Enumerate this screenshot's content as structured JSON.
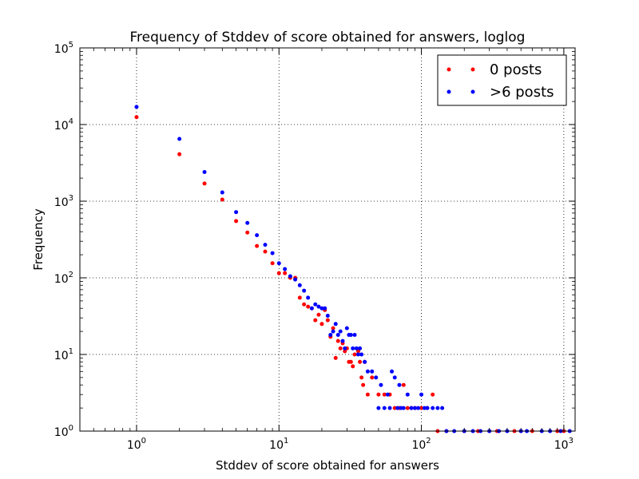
{
  "chart_data": {
    "type": "scatter",
    "title": "Frequency of Stddev of score obtained for answers, loglog",
    "xlabel": "Stddev of score obtained for answers",
    "ylabel": "Frequency",
    "xscale": "log",
    "yscale": "log",
    "xlim": [
      0.4,
      1200
    ],
    "ylim": [
      1,
      100000
    ],
    "grid": true,
    "legend_position": "top-right",
    "x_ticks": [
      {
        "base": "10",
        "exp": "0",
        "value": 1
      },
      {
        "base": "10",
        "exp": "1",
        "value": 10
      },
      {
        "base": "10",
        "exp": "2",
        "value": 100
      },
      {
        "base": "10",
        "exp": "3",
        "value": 1000
      }
    ],
    "y_ticks": [
      {
        "base": "10",
        "exp": "0",
        "value": 1
      },
      {
        "base": "10",
        "exp": "1",
        "value": 10
      },
      {
        "base": "10",
        "exp": "2",
        "value": 100
      },
      {
        "base": "10",
        "exp": "3",
        "value": 1000
      },
      {
        "base": "10",
        "exp": "4",
        "value": 10000
      },
      {
        "base": "10",
        "exp": "5",
        "value": 100000
      }
    ],
    "series": [
      {
        "name": "0 posts",
        "color": "#ff0000",
        "points": [
          [
            1,
            12500
          ],
          [
            2,
            4100
          ],
          [
            3,
            1700
          ],
          [
            4,
            1050
          ],
          [
            5,
            550
          ],
          [
            6,
            390
          ],
          [
            7,
            260
          ],
          [
            8,
            220
          ],
          [
            9,
            155
          ],
          [
            10,
            115
          ],
          [
            11,
            115
          ],
          [
            12,
            100
          ],
          [
            13,
            100
          ],
          [
            14,
            55
          ],
          [
            15,
            45
          ],
          [
            16,
            42
          ],
          [
            17,
            40
          ],
          [
            18,
            28
          ],
          [
            19,
            33
          ],
          [
            20,
            25
          ],
          [
            21,
            38
          ],
          [
            22,
            28
          ],
          [
            23,
            17
          ],
          [
            24,
            22
          ],
          [
            25,
            9
          ],
          [
            26,
            15
          ],
          [
            27,
            12
          ],
          [
            28,
            14
          ],
          [
            29,
            11
          ],
          [
            30,
            12
          ],
          [
            31,
            8
          ],
          [
            32,
            8
          ],
          [
            33,
            7
          ],
          [
            34,
            10
          ],
          [
            36,
            11
          ],
          [
            37,
            8
          ],
          [
            38,
            5
          ],
          [
            39,
            4
          ],
          [
            40,
            8
          ],
          [
            42,
            3
          ],
          [
            45,
            5
          ],
          [
            50,
            3
          ],
          [
            55,
            3
          ],
          [
            60,
            3
          ],
          [
            65,
            2
          ],
          [
            70,
            2
          ],
          [
            75,
            4
          ],
          [
            80,
            2
          ],
          [
            85,
            2
          ],
          [
            90,
            2
          ],
          [
            100,
            2
          ],
          [
            110,
            2
          ],
          [
            120,
            3
          ],
          [
            130,
            1
          ],
          [
            150,
            1
          ],
          [
            200,
            1
          ],
          [
            250,
            1
          ],
          [
            300,
            1
          ],
          [
            340,
            1
          ],
          [
            450,
            1
          ],
          [
            500,
            1
          ],
          [
            600,
            1
          ],
          [
            900,
            1
          ],
          [
            1000,
            1
          ]
        ]
      },
      {
        "name": ">6 posts",
        "color": "#0000ff",
        "points": [
          [
            1,
            17000
          ],
          [
            2,
            6500
          ],
          [
            3,
            2400
          ],
          [
            4,
            1300
          ],
          [
            5,
            720
          ],
          [
            6,
            520
          ],
          [
            7,
            360
          ],
          [
            8,
            270
          ],
          [
            9,
            210
          ],
          [
            10,
            155
          ],
          [
            11,
            130
          ],
          [
            12,
            105
          ],
          [
            13,
            95
          ],
          [
            14,
            80
          ],
          [
            15,
            68
          ],
          [
            16,
            55
          ],
          [
            17,
            40
          ],
          [
            18,
            45
          ],
          [
            19,
            42
          ],
          [
            20,
            40
          ],
          [
            21,
            40
          ],
          [
            22,
            32
          ],
          [
            23,
            18
          ],
          [
            24,
            20
          ],
          [
            25,
            25
          ],
          [
            26,
            18
          ],
          [
            27,
            20
          ],
          [
            28,
            15
          ],
          [
            29,
            12
          ],
          [
            30,
            22
          ],
          [
            31,
            18
          ],
          [
            32,
            18
          ],
          [
            33,
            12
          ],
          [
            34,
            18
          ],
          [
            35,
            12
          ],
          [
            36,
            10
          ],
          [
            37,
            12
          ],
          [
            38,
            10
          ],
          [
            40,
            8
          ],
          [
            42,
            6
          ],
          [
            45,
            6
          ],
          [
            48,
            5
          ],
          [
            50,
            2
          ],
          [
            52,
            4
          ],
          [
            55,
            2
          ],
          [
            58,
            3
          ],
          [
            60,
            2
          ],
          [
            62,
            6
          ],
          [
            65,
            5
          ],
          [
            68,
            2
          ],
          [
            70,
            4
          ],
          [
            72,
            2
          ],
          [
            75,
            2
          ],
          [
            80,
            3
          ],
          [
            85,
            2
          ],
          [
            90,
            2
          ],
          [
            95,
            2
          ],
          [
            100,
            3
          ],
          [
            105,
            2
          ],
          [
            110,
            2
          ],
          [
            120,
            2
          ],
          [
            130,
            2
          ],
          [
            140,
            2
          ],
          [
            150,
            1
          ],
          [
            170,
            1
          ],
          [
            200,
            1
          ],
          [
            230,
            1
          ],
          [
            260,
            1
          ],
          [
            300,
            1
          ],
          [
            350,
            1
          ],
          [
            400,
            1
          ],
          [
            500,
            1
          ],
          [
            550,
            1
          ],
          [
            700,
            1
          ],
          [
            800,
            1
          ],
          [
            950,
            1
          ],
          [
            1100,
            1
          ]
        ]
      }
    ]
  }
}
